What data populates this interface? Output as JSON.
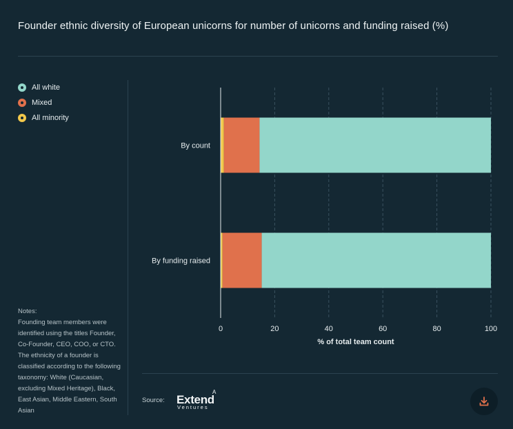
{
  "title": "Founder ethnic diversity of European unicorns for number of unicorns and funding raised (%)",
  "legend": [
    {
      "label": "All white",
      "color": "#93d6ca"
    },
    {
      "label": "Mixed",
      "color": "#e0714c"
    },
    {
      "label": "All minority",
      "color": "#f2c84b"
    }
  ],
  "notes": {
    "heading": "Notes:",
    "text": "Founding team members were identified using the titles Founder, Co-Founder, CEO, COO, or CTO. The ethnicity of a founder is classified according to the following taxonomy: White (Caucasian, excluding Mixed Heritage), Black, East Asian, Middle Eastern, South Asian"
  },
  "source": {
    "label": "Source:",
    "logo_main": "Extend",
    "logo_sub": "Ventures",
    "logo_mark": "A"
  },
  "download_icon": "download-icon",
  "chart_data": {
    "type": "bar",
    "orientation": "horizontal",
    "stacked": true,
    "categories": [
      "By count",
      "By funding raised"
    ],
    "series": [
      {
        "name": "All minority",
        "color": "#f2c84b",
        "values": [
          1.2,
          0.7
        ]
      },
      {
        "name": "Mixed",
        "color": "#e0714c",
        "values": [
          13.2,
          14.5
        ]
      },
      {
        "name": "All white",
        "color": "#93d6ca",
        "values": [
          85.6,
          84.8
        ]
      }
    ],
    "xlabel": "% of total team count",
    "xlim": [
      0,
      100
    ],
    "xticks": [
      0,
      20,
      40,
      60,
      80,
      100
    ],
    "grid": true
  }
}
